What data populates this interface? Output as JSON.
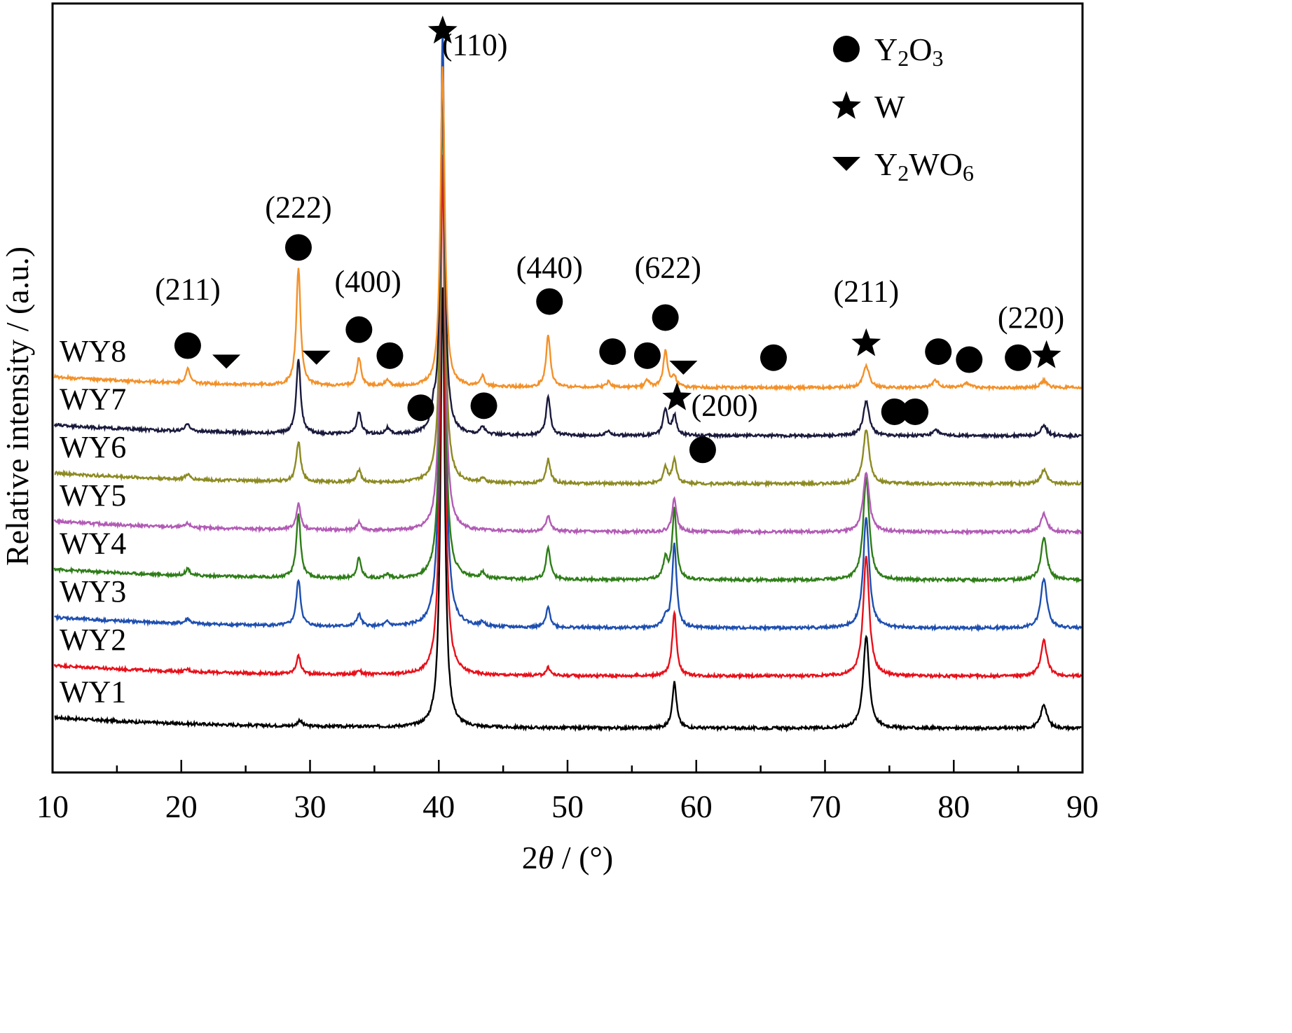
{
  "chart_data": {
    "type": "line",
    "xlabel_prefix": "2",
    "xlabel_var": "θ",
    "xlabel_suffix": " / (°)",
    "ylabel": "Relative intensity / (a.u.)",
    "xlim": [
      10,
      90
    ],
    "xticks": [
      10,
      20,
      30,
      40,
      50,
      60,
      70,
      80,
      90
    ],
    "y_ticks_shown": false,
    "grid": false,
    "legend_position": "top-right",
    "legend": [
      {
        "symbol": "circle",
        "phase": "Y",
        "sub1": "2",
        "mid": "O",
        "sub2": "3"
      },
      {
        "symbol": "star",
        "phase": "W",
        "sub1": "",
        "mid": "",
        "sub2": ""
      },
      {
        "symbol": "triangle-down",
        "phase": "Y",
        "sub1": "2",
        "mid": "WO",
        "sub2": "6"
      }
    ],
    "series": [
      {
        "name": "WY1",
        "color": "#000000",
        "offset": 0.0,
        "peaks": [
          [
            29.2,
            0.3
          ],
          [
            40.3,
            22
          ],
          [
            58.3,
            2.3
          ],
          [
            73.2,
            4.6
          ],
          [
            87.0,
            1.2
          ]
        ]
      },
      {
        "name": "WY2",
        "color": "#e8101a",
        "offset": 2.6,
        "peaks": [
          [
            20.5,
            0.12
          ],
          [
            29.1,
            0.9
          ],
          [
            33.8,
            0.2
          ],
          [
            40.3,
            26
          ],
          [
            48.5,
            0.4
          ],
          [
            58.3,
            3.2
          ],
          [
            73.2,
            6.0
          ],
          [
            87.0,
            1.8
          ]
        ]
      },
      {
        "name": "WY3",
        "color": "#1e4fb0",
        "offset": 5.0,
        "peaks": [
          [
            20.5,
            0.25
          ],
          [
            29.1,
            2.3
          ],
          [
            33.8,
            0.6
          ],
          [
            36.0,
            0.2
          ],
          [
            40.3,
            30
          ],
          [
            43.4,
            0.2
          ],
          [
            48.5,
            1.0
          ],
          [
            57.6,
            0.5
          ],
          [
            58.3,
            4.2
          ],
          [
            73.2,
            5.5
          ],
          [
            87.0,
            2.5
          ]
        ]
      },
      {
        "name": "WY4",
        "color": "#2e7d18",
        "offset": 7.4,
        "peaks": [
          [
            20.5,
            0.35
          ],
          [
            29.1,
            3.2
          ],
          [
            33.8,
            1.0
          ],
          [
            36.0,
            0.2
          ],
          [
            40.3,
            24
          ],
          [
            43.4,
            0.3
          ],
          [
            48.5,
            1.6
          ],
          [
            57.6,
            1.0
          ],
          [
            58.3,
            3.5
          ],
          [
            73.2,
            5.1
          ],
          [
            87.0,
            2.1
          ]
        ]
      },
      {
        "name": "WY5",
        "color": "#b25bb5",
        "offset": 9.8,
        "peaks": [
          [
            20.5,
            0.2
          ],
          [
            29.1,
            1.3
          ],
          [
            33.8,
            0.4
          ],
          [
            40.3,
            22
          ],
          [
            48.5,
            0.8
          ],
          [
            58.3,
            1.7
          ],
          [
            73.2,
            3.0
          ],
          [
            87.0,
            0.9
          ]
        ]
      },
      {
        "name": "WY6",
        "color": "#8c8a22",
        "offset": 12.2,
        "peaks": [
          [
            20.5,
            0.25
          ],
          [
            29.1,
            2.0
          ],
          [
            33.8,
            0.6
          ],
          [
            40.3,
            20
          ],
          [
            43.4,
            0.2
          ],
          [
            48.5,
            1.2
          ],
          [
            57.6,
            0.8
          ],
          [
            58.3,
            1.2
          ],
          [
            73.2,
            2.7
          ],
          [
            87.0,
            0.7
          ]
        ]
      },
      {
        "name": "WY7",
        "color": "#1a1a3d",
        "offset": 14.6,
        "peaks": [
          [
            20.5,
            0.4
          ],
          [
            29.1,
            3.7
          ],
          [
            33.8,
            1.1
          ],
          [
            36.0,
            0.3
          ],
          [
            39.6,
            0.9
          ],
          [
            40.3,
            18
          ],
          [
            43.4,
            0.4
          ],
          [
            48.5,
            1.9
          ],
          [
            53.2,
            0.25
          ],
          [
            57.6,
            1.3
          ],
          [
            58.3,
            1.0
          ],
          [
            73.2,
            1.7
          ],
          [
            78.6,
            0.3
          ],
          [
            87.0,
            0.5
          ]
        ]
      },
      {
        "name": "WY8",
        "color": "#f39129",
        "offset": 17.0,
        "peaks": [
          [
            20.5,
            0.7
          ],
          [
            29.1,
            5.8
          ],
          [
            33.8,
            1.4
          ],
          [
            36.0,
            0.3
          ],
          [
            40.3,
            16
          ],
          [
            43.4,
            0.5
          ],
          [
            48.5,
            2.6
          ],
          [
            53.2,
            0.3
          ],
          [
            56.2,
            0.35
          ],
          [
            57.6,
            1.8
          ],
          [
            58.3,
            0.5
          ],
          [
            73.2,
            1.1
          ],
          [
            78.6,
            0.35
          ],
          [
            81.0,
            0.25
          ],
          [
            87.0,
            0.35
          ]
        ]
      }
    ],
    "annotations": [
      {
        "label": "(211)",
        "x": 20.5,
        "y": 21.4
      },
      {
        "label": "(222)",
        "x": 29.1,
        "y": 25.5
      },
      {
        "label": "(400)",
        "x": 34.5,
        "y": 21.8
      },
      {
        "label": "(110)",
        "x": 42.8,
        "y": 33.6
      },
      {
        "label": "(440)",
        "x": 48.6,
        "y": 22.5
      },
      {
        "label": "(622)",
        "x": 57.8,
        "y": 22.5
      },
      {
        "label": "(200)",
        "x": 62.2,
        "y": 15.6
      },
      {
        "label": "(211)",
        "x": 73.2,
        "y": 21.3
      },
      {
        "label": "(220)",
        "x": 86.0,
        "y": 20.0
      }
    ],
    "markers": [
      {
        "symbol": "circle",
        "x": 20.5,
        "y": 19.1
      },
      {
        "symbol": "triangle-down",
        "x": 23.5,
        "y": 18.3
      },
      {
        "symbol": "circle",
        "x": 29.1,
        "y": 24.0
      },
      {
        "symbol": "triangle-down",
        "x": 30.5,
        "y": 18.5
      },
      {
        "symbol": "circle",
        "x": 33.8,
        "y": 19.9
      },
      {
        "symbol": "circle",
        "x": 36.2,
        "y": 18.6
      },
      {
        "symbol": "circle",
        "x": 38.6,
        "y": 16.0
      },
      {
        "symbol": "star",
        "x": 40.3,
        "y": 34.8
      },
      {
        "symbol": "circle",
        "x": 43.5,
        "y": 16.1
      },
      {
        "symbol": "circle",
        "x": 48.6,
        "y": 21.3
      },
      {
        "symbol": "circle",
        "x": 53.5,
        "y": 18.8
      },
      {
        "symbol": "circle",
        "x": 56.2,
        "y": 18.6
      },
      {
        "symbol": "circle",
        "x": 57.6,
        "y": 20.5
      },
      {
        "symbol": "triangle-down",
        "x": 59.0,
        "y": 18.0
      },
      {
        "symbol": "star",
        "x": 58.5,
        "y": 16.5
      },
      {
        "symbol": "circle",
        "x": 60.5,
        "y": 13.9
      },
      {
        "symbol": "circle",
        "x": 66.0,
        "y": 18.5
      },
      {
        "symbol": "star",
        "x": 73.2,
        "y": 19.2
      },
      {
        "symbol": "circle",
        "x": 75.4,
        "y": 15.8
      },
      {
        "symbol": "circle",
        "x": 77.0,
        "y": 15.8
      },
      {
        "symbol": "circle",
        "x": 78.8,
        "y": 18.8
      },
      {
        "symbol": "circle",
        "x": 81.2,
        "y": 18.4
      },
      {
        "symbol": "circle",
        "x": 85.0,
        "y": 18.5
      },
      {
        "symbol": "star",
        "x": 87.2,
        "y": 18.6
      }
    ]
  }
}
